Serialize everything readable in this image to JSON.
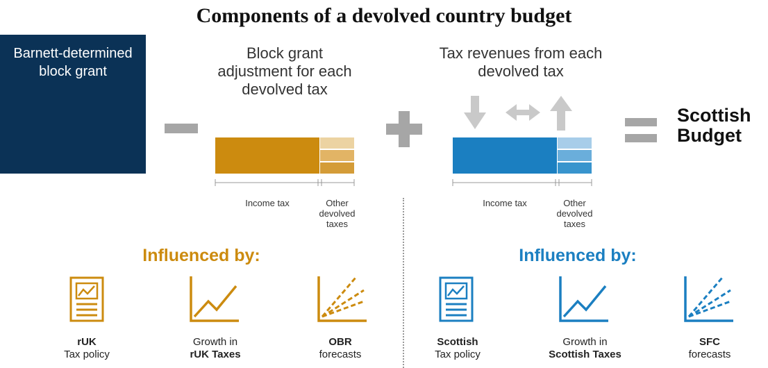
{
  "title": "Components of a devolved country budget",
  "block_grant_label": "Barnett-determined block grant",
  "left_section": {
    "heading": "Block grant adjustment for each devolved tax",
    "income_label": "Income tax",
    "other_label": "Other devolved taxes",
    "influenced_label": "Influenced by:",
    "accent_color": "#cc8b0f",
    "factors": [
      {
        "line1": "rUK",
        "line2": "Tax policy",
        "icon": "tax-policy-document-icon"
      },
      {
        "line1": "Growth in",
        "line2": "rUK Taxes",
        "icon": "growth-chart-icon"
      },
      {
        "line1": "OBR",
        "line2": "forecasts",
        "icon": "forecast-chart-icon"
      }
    ]
  },
  "right_section": {
    "heading": "Tax revenues from each devolved tax",
    "income_label": "Income tax",
    "other_label": "Other devolved taxes",
    "influenced_label": "Influenced by:",
    "accent_color": "#1b7fc1",
    "factors": [
      {
        "line1": "Scottish",
        "line2": "Tax policy",
        "icon": "tax-policy-document-icon"
      },
      {
        "line1": "Growth in",
        "line2": "Scottish Taxes",
        "icon": "growth-chart-icon"
      },
      {
        "line1": "SFC",
        "line2": "forecasts",
        "icon": "forecast-chart-icon"
      }
    ]
  },
  "result_label": "Scottish Budget",
  "operators": {
    "minus": "minus-icon",
    "plus": "plus-icon",
    "equals": "equals-icon"
  },
  "arrows": [
    "arrow-down-icon",
    "arrow-left-right-icon",
    "arrow-up-icon"
  ]
}
